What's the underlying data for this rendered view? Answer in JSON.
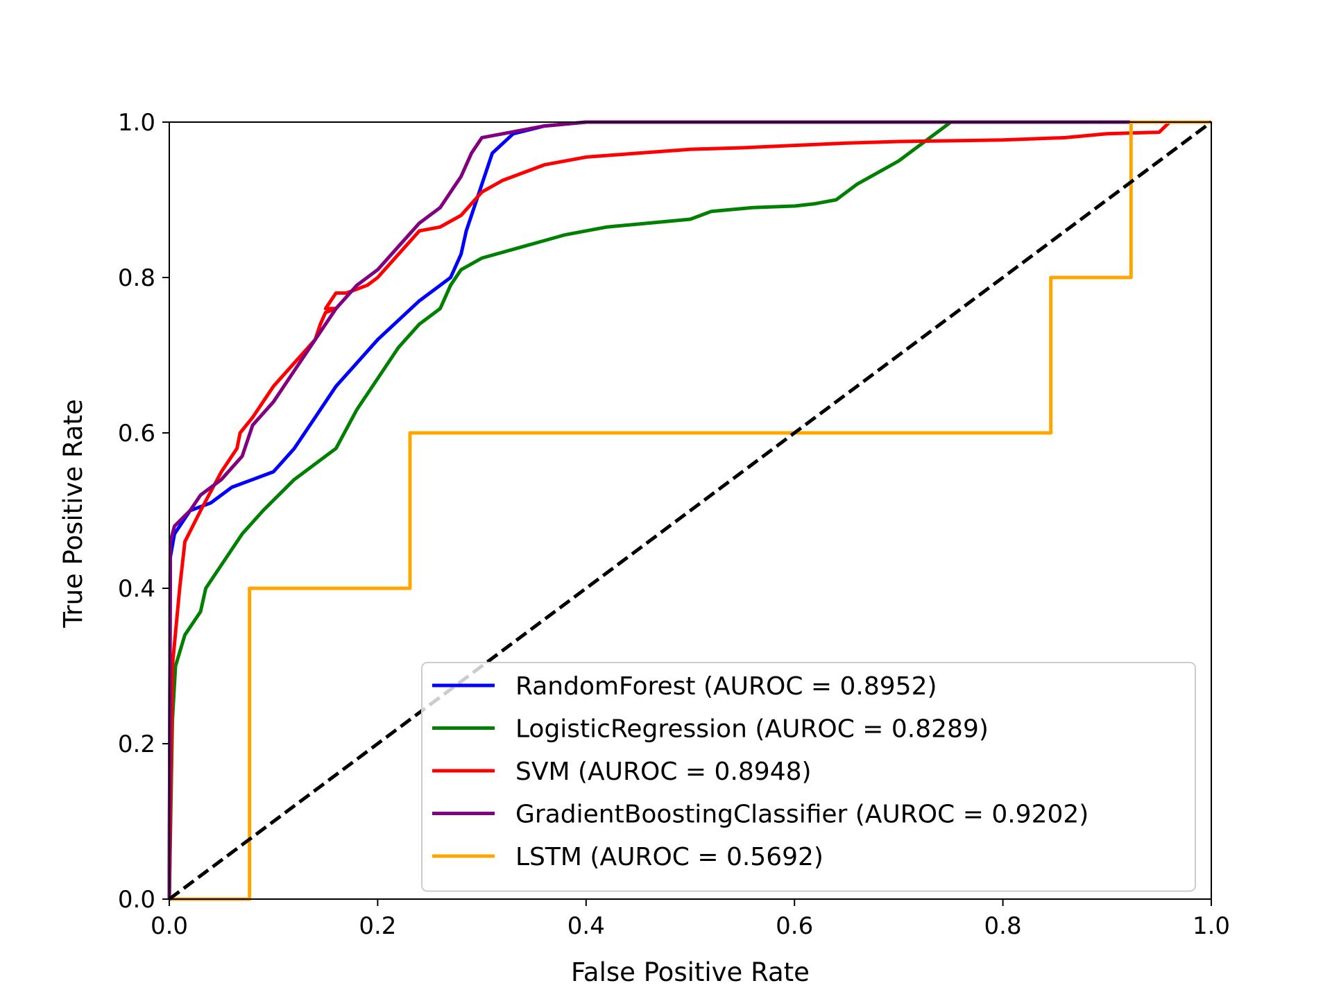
{
  "chart_data": {
    "type": "line",
    "title": "",
    "xlabel": "False Positive Rate",
    "ylabel": "True Positive Rate",
    "xlim": [
      0.0,
      1.0
    ],
    "ylim": [
      0.0,
      1.0
    ],
    "grid": false,
    "legend_placement": "lower-right",
    "x_ticks": [
      "0.0",
      "0.2",
      "0.4",
      "0.6",
      "0.8",
      "1.0"
    ],
    "y_ticks": [
      "0.0",
      "0.2",
      "0.4",
      "0.6",
      "0.8",
      "1.0"
    ],
    "reference_line": {
      "style": "dashed",
      "color": "#000000",
      "points": [
        [
          0,
          0
        ],
        [
          1,
          1
        ]
      ]
    },
    "series": [
      {
        "name": "RandomForest (AUROC = 0.8952)",
        "color": "#0000ff",
        "points": [
          [
            0,
            0
          ],
          [
            0.001,
            0.44
          ],
          [
            0.005,
            0.47
          ],
          [
            0.02,
            0.5
          ],
          [
            0.04,
            0.51
          ],
          [
            0.06,
            0.53
          ],
          [
            0.08,
            0.54
          ],
          [
            0.1,
            0.55
          ],
          [
            0.12,
            0.58
          ],
          [
            0.14,
            0.62
          ],
          [
            0.16,
            0.66
          ],
          [
            0.18,
            0.69
          ],
          [
            0.2,
            0.72
          ],
          [
            0.22,
            0.745
          ],
          [
            0.24,
            0.77
          ],
          [
            0.26,
            0.79
          ],
          [
            0.27,
            0.8
          ],
          [
            0.28,
            0.83
          ],
          [
            0.285,
            0.86
          ],
          [
            0.29,
            0.88
          ],
          [
            0.3,
            0.92
          ],
          [
            0.31,
            0.96
          ],
          [
            0.33,
            0.985
          ],
          [
            0.36,
            0.995
          ],
          [
            0.4,
            1.0
          ],
          [
            1.0,
            1.0
          ]
        ]
      },
      {
        "name": "LogisticRegression (AUROC = 0.8289)",
        "color": "#008000",
        "points": [
          [
            0,
            0
          ],
          [
            0.003,
            0.23
          ],
          [
            0.006,
            0.3
          ],
          [
            0.015,
            0.34
          ],
          [
            0.03,
            0.37
          ],
          [
            0.035,
            0.4
          ],
          [
            0.05,
            0.43
          ],
          [
            0.07,
            0.47
          ],
          [
            0.09,
            0.5
          ],
          [
            0.12,
            0.54
          ],
          [
            0.14,
            0.56
          ],
          [
            0.16,
            0.58
          ],
          [
            0.18,
            0.63
          ],
          [
            0.2,
            0.67
          ],
          [
            0.22,
            0.71
          ],
          [
            0.24,
            0.74
          ],
          [
            0.26,
            0.76
          ],
          [
            0.27,
            0.79
          ],
          [
            0.28,
            0.81
          ],
          [
            0.3,
            0.825
          ],
          [
            0.34,
            0.84
          ],
          [
            0.38,
            0.855
          ],
          [
            0.42,
            0.865
          ],
          [
            0.46,
            0.87
          ],
          [
            0.5,
            0.875
          ],
          [
            0.52,
            0.885
          ],
          [
            0.56,
            0.89
          ],
          [
            0.6,
            0.892
          ],
          [
            0.62,
            0.895
          ],
          [
            0.64,
            0.9
          ],
          [
            0.66,
            0.92
          ],
          [
            0.68,
            0.935
          ],
          [
            0.7,
            0.95
          ],
          [
            0.72,
            0.97
          ],
          [
            0.74,
            0.99
          ],
          [
            0.75,
            1.0
          ],
          [
            1.0,
            1.0
          ]
        ]
      },
      {
        "name": "SVM (AUROC = 0.8948)",
        "color": "#ff0000",
        "points": [
          [
            0,
            0
          ],
          [
            0.003,
            0.3
          ],
          [
            0.01,
            0.4
          ],
          [
            0.015,
            0.46
          ],
          [
            0.03,
            0.5
          ],
          [
            0.05,
            0.55
          ],
          [
            0.065,
            0.58
          ],
          [
            0.068,
            0.6
          ],
          [
            0.08,
            0.62
          ],
          [
            0.1,
            0.66
          ],
          [
            0.12,
            0.69
          ],
          [
            0.14,
            0.72
          ],
          [
            0.145,
            0.74
          ],
          [
            0.15,
            0.755
          ],
          [
            0.16,
            0.76
          ],
          [
            0.15,
            0.76
          ],
          [
            0.16,
            0.78
          ],
          [
            0.17,
            0.78
          ],
          [
            0.19,
            0.79
          ],
          [
            0.2,
            0.8
          ],
          [
            0.22,
            0.83
          ],
          [
            0.24,
            0.86
          ],
          [
            0.26,
            0.865
          ],
          [
            0.28,
            0.88
          ],
          [
            0.3,
            0.91
          ],
          [
            0.32,
            0.925
          ],
          [
            0.36,
            0.945
          ],
          [
            0.4,
            0.955
          ],
          [
            0.45,
            0.96
          ],
          [
            0.5,
            0.965
          ],
          [
            0.55,
            0.967
          ],
          [
            0.6,
            0.97
          ],
          [
            0.65,
            0.973
          ],
          [
            0.7,
            0.975
          ],
          [
            0.8,
            0.977
          ],
          [
            0.86,
            0.98
          ],
          [
            0.9,
            0.985
          ],
          [
            0.95,
            0.987
          ],
          [
            0.96,
            1.0
          ],
          [
            1.0,
            1.0
          ]
        ]
      },
      {
        "name": "GradientBoostingClassifier (AUROC = 0.9202)",
        "color": "#800080",
        "points": [
          [
            0,
            0
          ],
          [
            0.001,
            0.46
          ],
          [
            0.005,
            0.48
          ],
          [
            0.02,
            0.5
          ],
          [
            0.03,
            0.52
          ],
          [
            0.05,
            0.54
          ],
          [
            0.07,
            0.57
          ],
          [
            0.08,
            0.61
          ],
          [
            0.1,
            0.64
          ],
          [
            0.12,
            0.68
          ],
          [
            0.14,
            0.72
          ],
          [
            0.16,
            0.76
          ],
          [
            0.18,
            0.79
          ],
          [
            0.2,
            0.81
          ],
          [
            0.22,
            0.84
          ],
          [
            0.24,
            0.87
          ],
          [
            0.25,
            0.88
          ],
          [
            0.26,
            0.89
          ],
          [
            0.27,
            0.91
          ],
          [
            0.28,
            0.93
          ],
          [
            0.29,
            0.96
          ],
          [
            0.3,
            0.98
          ],
          [
            0.32,
            0.985
          ],
          [
            0.34,
            0.99
          ],
          [
            0.36,
            0.995
          ],
          [
            0.4,
            1.0
          ],
          [
            1.0,
            1.0
          ]
        ]
      },
      {
        "name": "LSTM (AUROC = 0.5692)",
        "color": "#ffa500",
        "points": [
          [
            0,
            0
          ],
          [
            0.077,
            0
          ],
          [
            0.077,
            0.4
          ],
          [
            0.231,
            0.4
          ],
          [
            0.231,
            0.6
          ],
          [
            0.846,
            0.6
          ],
          [
            0.846,
            0.8
          ],
          [
            0.923,
            0.8
          ],
          [
            0.923,
            1.0
          ],
          [
            1.0,
            1.0
          ]
        ]
      }
    ]
  }
}
